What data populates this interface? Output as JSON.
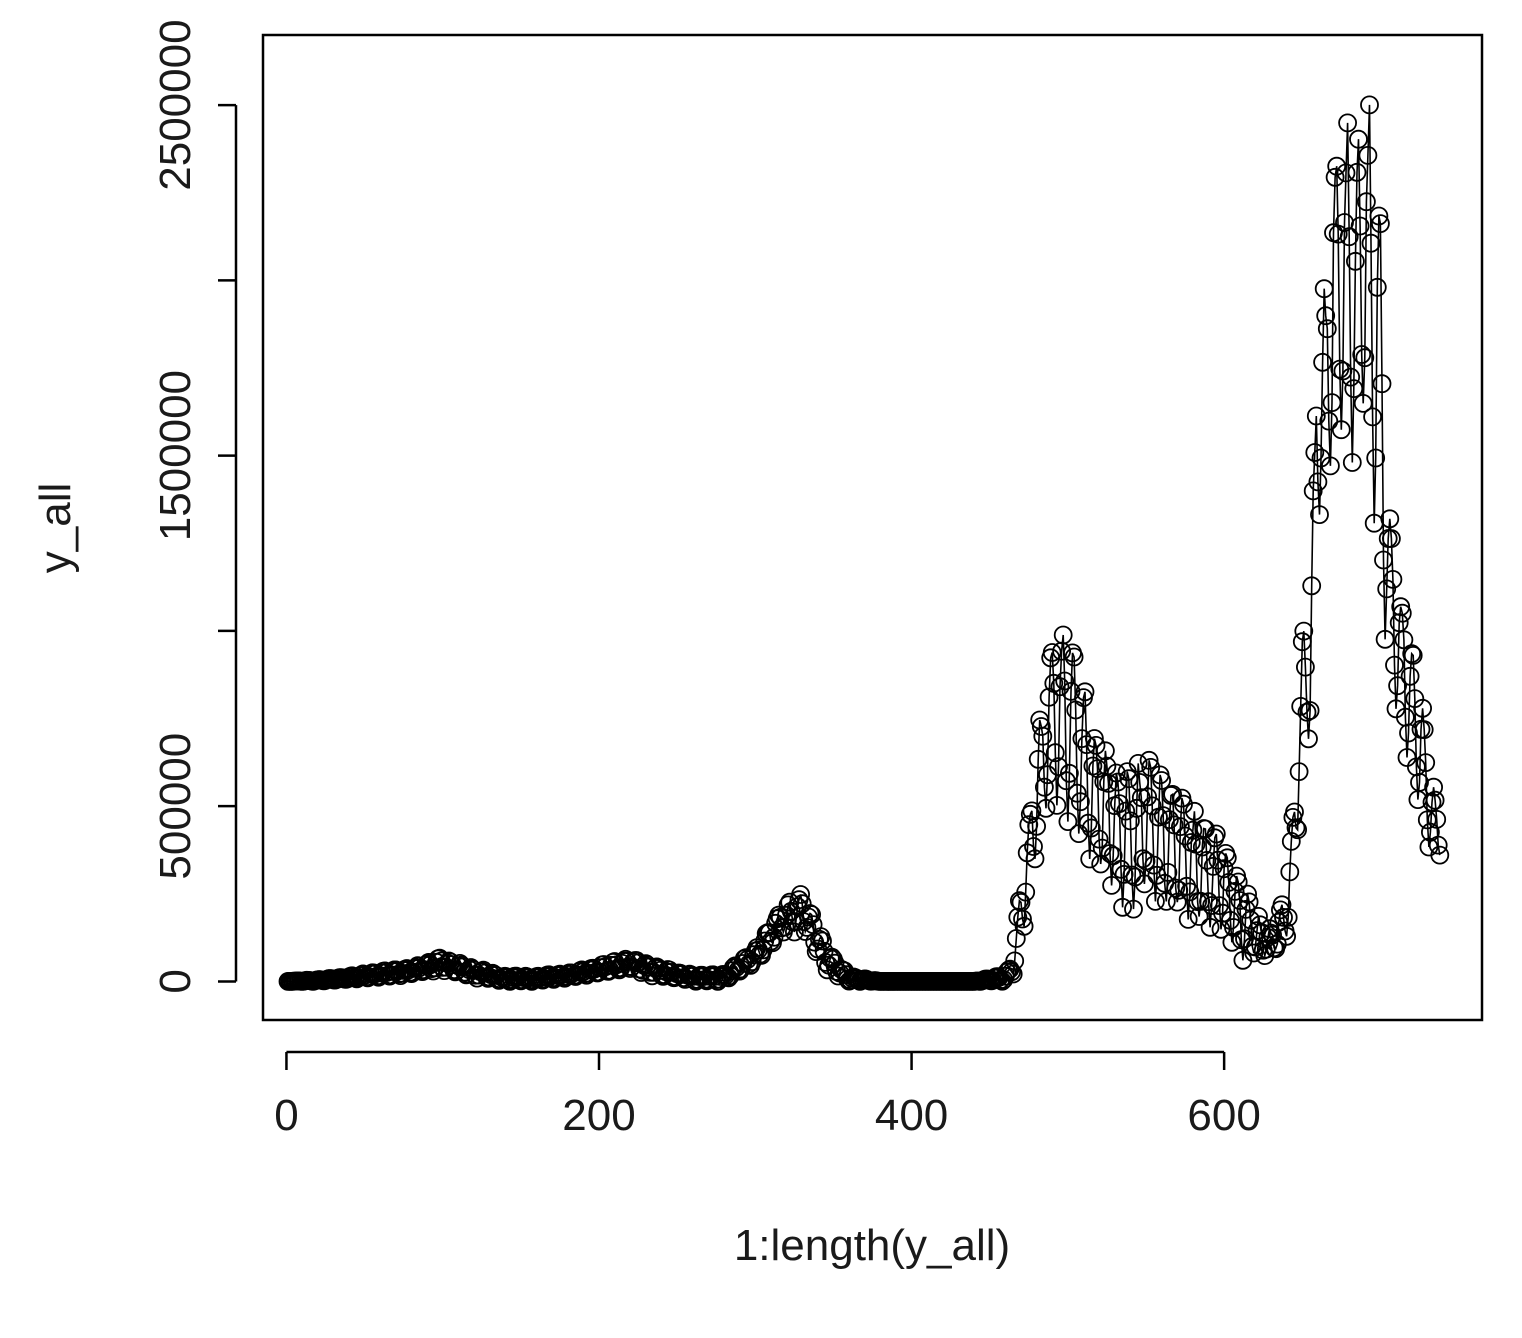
{
  "chart_data": {
    "type": "scatter",
    "style": "both (points with connecting lines)",
    "title": "",
    "xlabel": "1:length(y_all)",
    "ylabel": "y_all",
    "xlim": [
      -15,
      765
    ],
    "ylim": [
      -110000,
      2700000
    ],
    "x_ticks": [
      0,
      200,
      400,
      600
    ],
    "x_tick_labels": [
      "0",
      "200",
      "400",
      "600"
    ],
    "y_ticks": [
      0,
      500000,
      1000000,
      1500000,
      2000000,
      2500000
    ],
    "y_tick_labels": [
      "0",
      "500000",
      "",
      "1500000",
      "",
      "2500000"
    ],
    "grid": false,
    "legend": "none",
    "point_shape": "open-circle",
    "color": "#000000",
    "n_points": 738,
    "envelope": {
      "x": [
        0,
        20,
        40,
        60,
        80,
        100,
        120,
        140,
        160,
        180,
        200,
        220,
        240,
        260,
        280,
        300,
        315,
        330,
        345,
        360,
        380,
        400,
        420,
        440,
        460,
        465,
        470,
        480,
        490,
        500,
        510,
        520,
        530,
        540,
        550,
        560,
        570,
        580,
        590,
        600,
        610,
        620,
        630,
        640,
        645,
        650,
        655,
        660,
        665,
        670,
        675,
        680,
        685,
        690,
        695,
        700,
        705,
        710,
        715,
        720,
        725,
        730,
        735,
        738
      ],
      "high": [
        0,
        5000,
        15000,
        30000,
        40000,
        70000,
        40000,
        15000,
        15000,
        25000,
        45000,
        70000,
        40000,
        20000,
        20000,
        90000,
        200000,
        260000,
        100000,
        15000,
        0,
        0,
        0,
        0,
        20000,
        60000,
        280000,
        700000,
        1000000,
        1050000,
        850000,
        750000,
        650000,
        600000,
        650000,
        600000,
        550000,
        500000,
        450000,
        420000,
        300000,
        200000,
        150000,
        250000,
        550000,
        1000000,
        1100000,
        1950000,
        2000000,
        2400000,
        2450000,
        2450000,
        2400000,
        2600000,
        2500000,
        2200000,
        1500000,
        1200000,
        1100000,
        1000000,
        850000,
        700000,
        520000,
        500000
      ],
      "low": [
        0,
        0,
        5000,
        10000,
        20000,
        30000,
        10000,
        0,
        0,
        10000,
        20000,
        30000,
        10000,
        0,
        0,
        50000,
        120000,
        150000,
        30000,
        0,
        0,
        0,
        0,
        0,
        0,
        20000,
        100000,
        350000,
        500000,
        400000,
        300000,
        250000,
        200000,
        180000,
        200000,
        180000,
        150000,
        150000,
        120000,
        100000,
        60000,
        50000,
        60000,
        100000,
        300000,
        600000,
        650000,
        1250000,
        1400000,
        1350000,
        1400000,
        1350000,
        1400000,
        1450000,
        1300000,
        1000000,
        800000,
        700000,
        650000,
        550000,
        450000,
        380000,
        320000,
        350000
      ]
    }
  }
}
